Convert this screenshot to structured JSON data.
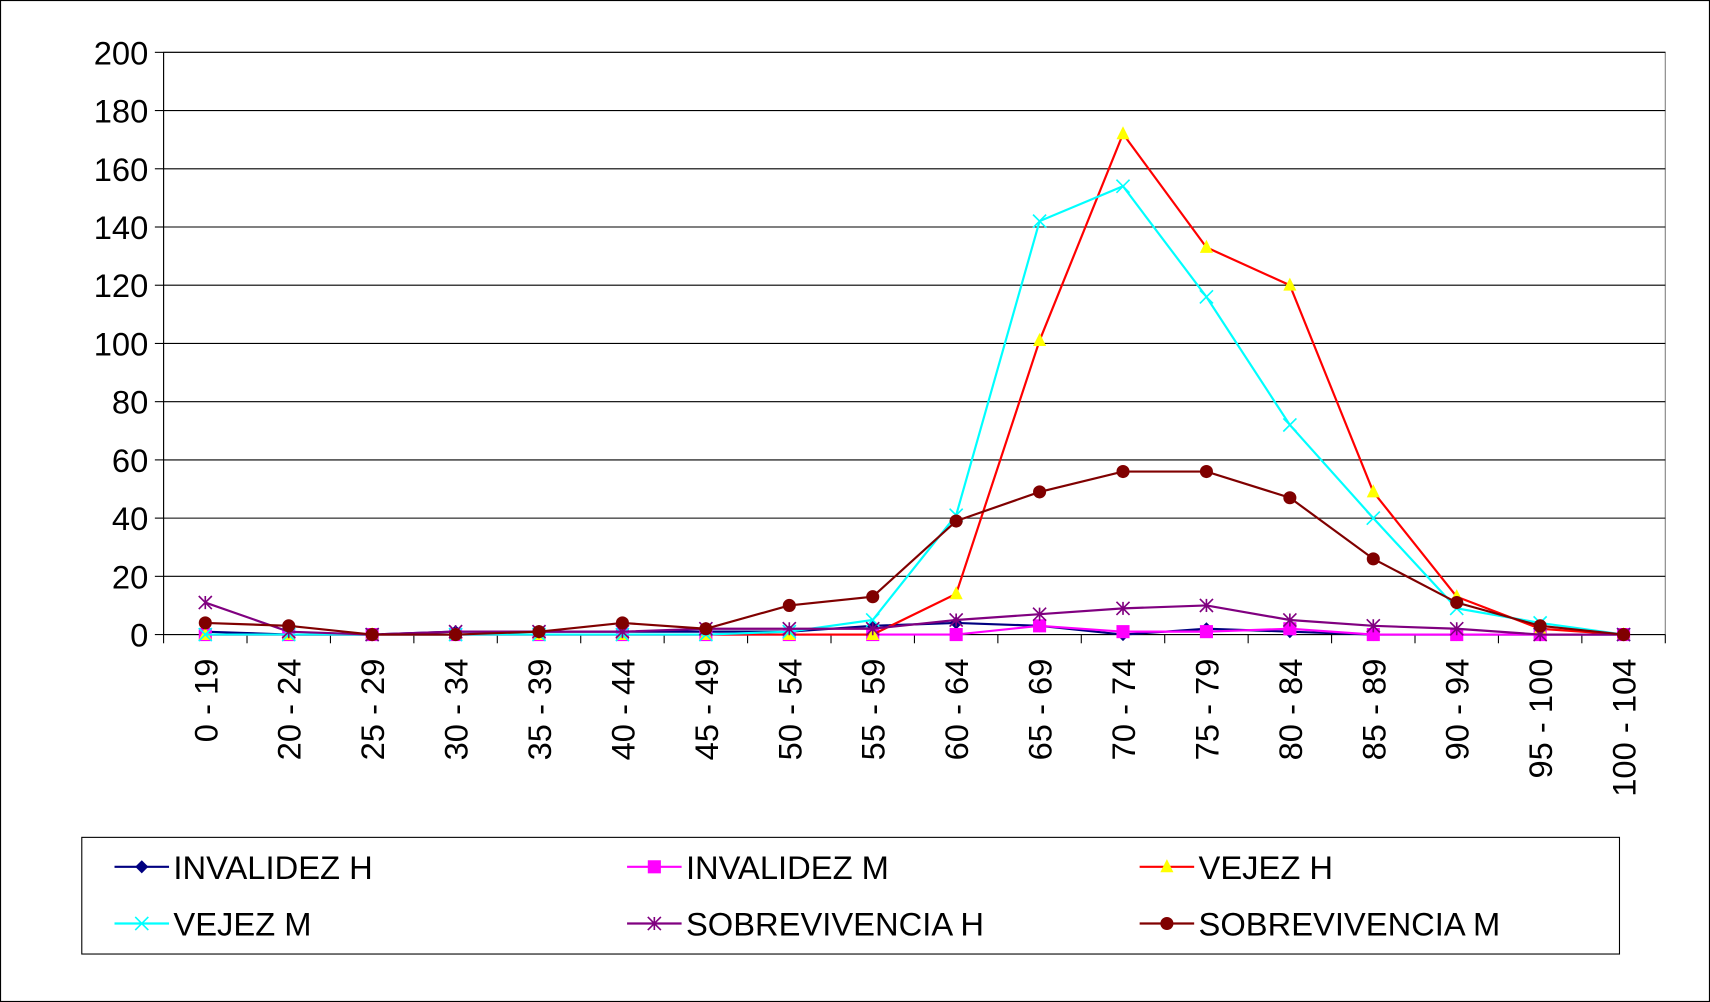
{
  "chart_data": {
    "type": "line",
    "categories": [
      "0 - 19",
      "20 - 24",
      "25 - 29",
      "30 - 34",
      "35 - 39",
      "40 - 44",
      "45 - 49",
      "50 - 54",
      "55 - 59",
      "60 - 64",
      "65 - 69",
      "70 - 74",
      "75 - 79",
      "80 - 84",
      "85 - 89",
      "90 - 94",
      "95 - 100",
      "100 - 104"
    ],
    "series": [
      {
        "name": "INVALIDEZ H",
        "color": "#000080",
        "marker": "diamond",
        "values": [
          1,
          0,
          0,
          1,
          1,
          1,
          1,
          1,
          3,
          4,
          3,
          0,
          2,
          1,
          0,
          0,
          0,
          0
        ]
      },
      {
        "name": "INVALIDEZ M",
        "color": "#ff00ff",
        "marker": "square",
        "values": [
          0,
          0,
          0,
          0,
          0,
          0,
          0,
          0,
          0,
          0,
          3,
          1,
          1,
          2,
          0,
          0,
          0,
          0
        ]
      },
      {
        "name": "VEJEZ H",
        "color": "#ff0000",
        "marker": "triangle",
        "marker_color": "#ffff00",
        "values": [
          0,
          0,
          0,
          0,
          0,
          0,
          0,
          0,
          0,
          14,
          101,
          172,
          133,
          120,
          49,
          13,
          2,
          0
        ]
      },
      {
        "name": "VEJEZ M",
        "color": "#00ffff",
        "marker": "x",
        "values": [
          0,
          0,
          0,
          0,
          0,
          0,
          0,
          1,
          5,
          41,
          142,
          154,
          116,
          72,
          40,
          9,
          4,
          0
        ]
      },
      {
        "name": "SOBREVIVENCIA H",
        "color": "#800080",
        "marker": "star",
        "values": [
          11,
          1,
          0,
          1,
          1,
          1,
          2,
          2,
          2,
          5,
          7,
          9,
          10,
          5,
          3,
          2,
          0,
          0
        ]
      },
      {
        "name": "SOBREVIVENCIA M",
        "color": "#800000",
        "marker": "circle",
        "values": [
          4,
          3,
          0,
          0,
          1,
          4,
          2,
          10,
          13,
          39,
          49,
          56,
          56,
          47,
          26,
          11,
          3,
          0
        ]
      }
    ],
    "ylim": [
      0,
      200
    ],
    "yticks": [
      0,
      20,
      40,
      60,
      80,
      100,
      120,
      140,
      160,
      180,
      200
    ],
    "grid": true,
    "legend": "bottom"
  }
}
